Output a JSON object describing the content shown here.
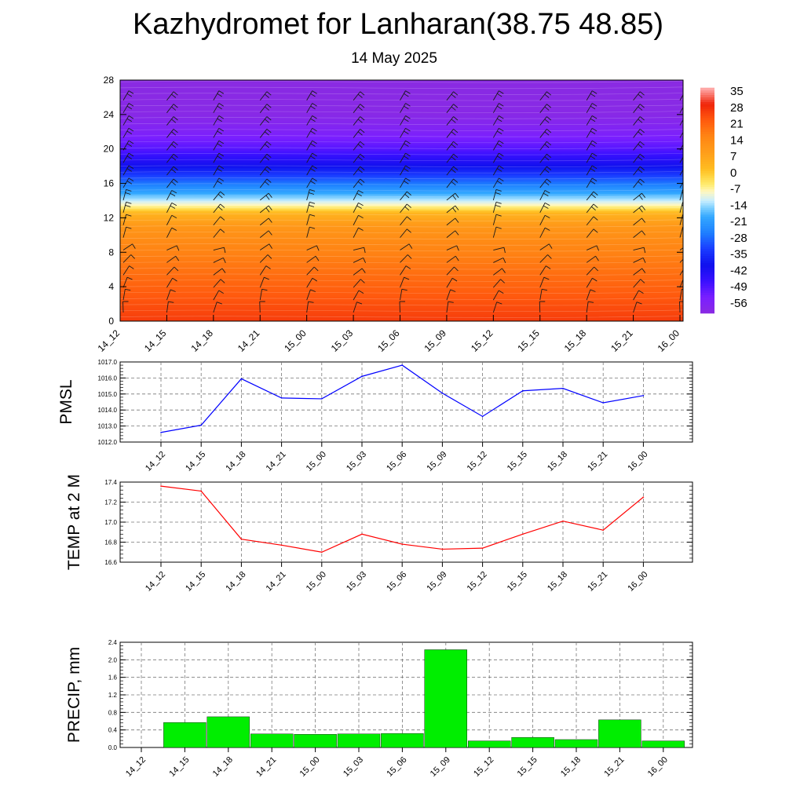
{
  "header": {
    "title": "Kazhydromet for Lanharan(38.75 48.85)",
    "date": "14 May 2025"
  },
  "time_labels": [
    "14_12",
    "14_15",
    "14_18",
    "14_21",
    "15_00",
    "15_03",
    "15_06",
    "15_09",
    "15_12",
    "15_15",
    "15_18",
    "15_21",
    "16_00"
  ],
  "colors": {
    "pmsl_line": "#0000ff",
    "temp_line": "#ff0000",
    "precip_bar": "#00ee00",
    "grid": "#777777"
  },
  "chart_data": [
    {
      "type": "heatmap",
      "variable": "temperature",
      "xlabel": "",
      "ylabel": "",
      "x": [
        "14_12",
        "14_15",
        "14_18",
        "14_21",
        "15_00",
        "15_03",
        "15_06",
        "15_09",
        "15_12",
        "15_15",
        "15_18",
        "15_21",
        "16_00"
      ],
      "y_ticks": [
        0,
        4,
        8,
        12,
        16,
        20,
        24,
        28
      ],
      "ylim": [
        0,
        28
      ],
      "colorbar_labels": [
        35,
        28,
        21,
        14,
        7,
        0,
        -7,
        -14,
        -21,
        -28,
        -35,
        -42,
        -49,
        -56
      ],
      "colorbar_range": [
        -63,
        35
      ],
      "profile": [
        {
          "level": 0,
          "value": 25
        },
        {
          "level": 3,
          "value": 21
        },
        {
          "level": 6,
          "value": 17
        },
        {
          "level": 9,
          "value": 13
        },
        {
          "level": 11,
          "value": 9
        },
        {
          "level": 12.5,
          "value": 2
        },
        {
          "level": 13.5,
          "value": -10
        },
        {
          "level": 15,
          "value": -22
        },
        {
          "level": 16.5,
          "value": -32
        },
        {
          "level": 18,
          "value": -42
        },
        {
          "level": 20,
          "value": -52
        },
        {
          "level": 22,
          "value": -58
        },
        {
          "level": 24,
          "value": -62
        },
        {
          "level": 28,
          "value": -63
        }
      ],
      "wind_barbs": true
    },
    {
      "type": "line",
      "ylabel": "PMSL",
      "categories": [
        "14_12",
        "14_15",
        "14_18",
        "14_21",
        "15_00",
        "15_03",
        "15_06",
        "15_09",
        "15_12",
        "15_15",
        "15_18",
        "15_21",
        "16_00"
      ],
      "values": [
        1012.6,
        1013.05,
        1015.95,
        1014.75,
        1014.7,
        1016.1,
        1016.8,
        1015.05,
        1013.6,
        1015.2,
        1015.35,
        1014.45,
        1014.9
      ],
      "ylim": [
        1012.0,
        1017.0
      ],
      "y_ticks": [
        "1012.0",
        "1013.0",
        "1014.0",
        "1015.0",
        "1016.0",
        "1017.0"
      ],
      "grid": true
    },
    {
      "type": "line",
      "ylabel": "TEMP at 2 M",
      "categories": [
        "14_12",
        "14_15",
        "14_18",
        "14_21",
        "15_00",
        "15_03",
        "15_06",
        "15_09",
        "15_12",
        "15_15",
        "15_18",
        "15_21",
        "16_00"
      ],
      "values": [
        17.36,
        17.31,
        16.83,
        16.77,
        16.7,
        16.88,
        16.78,
        16.73,
        16.74,
        16.88,
        17.01,
        16.92,
        17.25
      ],
      "ylim": [
        16.6,
        17.4
      ],
      "y_ticks": [
        "16.6",
        "16.8",
        "17.0",
        "17.2",
        "17.4"
      ],
      "grid": true
    },
    {
      "type": "bar",
      "ylabel": "PRECIP, mm",
      "categories": [
        "14_12",
        "14_15",
        "14_18",
        "14_21",
        "15_00",
        "15_03",
        "15_06",
        "15_09",
        "15_12",
        "15_15",
        "15_18",
        "15_21",
        "16_00"
      ],
      "values": [
        0.0,
        0.57,
        0.7,
        0.31,
        0.3,
        0.31,
        0.32,
        2.23,
        0.15,
        0.23,
        0.18,
        0.63,
        0.15
      ],
      "ylim": [
        0.0,
        2.4
      ],
      "y_ticks": [
        "0.0",
        "0.4",
        "0.8",
        "1.2",
        "1.6",
        "2.0",
        "2.4"
      ],
      "grid": true
    }
  ]
}
